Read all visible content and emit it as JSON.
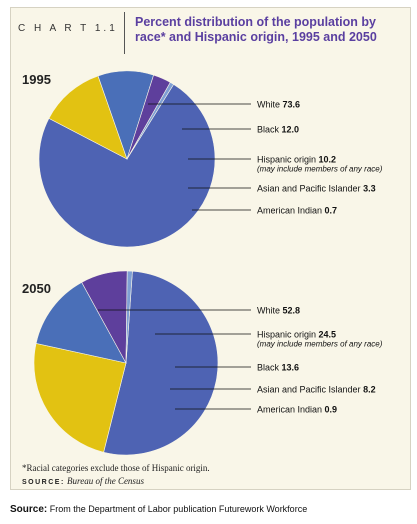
{
  "header": {
    "chart_label": "C H A R T   1.1",
    "title": "Percent distribution of the population by race* and Hispanic origin, 1995 and 2050"
  },
  "colors": {
    "white": "#4e63b3",
    "black": "#e2c212",
    "hispanic": "#4a6fb8",
    "asian": "#5e3f9c",
    "american_indian": "#7f9fd4"
  },
  "chart_data": [
    {
      "type": "pie",
      "title": "1995",
      "slices": [
        {
          "label": "White",
          "value": 73.6,
          "color": "#4e63b3"
        },
        {
          "label": "Black",
          "value": 12.0,
          "color": "#e2c212"
        },
        {
          "label": "Hispanic origin",
          "value": 10.2,
          "note": "(may include members of any race)",
          "color": "#4a6fb8"
        },
        {
          "label": "Asian and Pacific Islander",
          "value": 3.3,
          "color": "#5e3f9c"
        },
        {
          "label": "American Indian",
          "value": 0.7,
          "color": "#7f9fd4"
        }
      ]
    },
    {
      "type": "pie",
      "title": "2050",
      "slices": [
        {
          "label": "White",
          "value": 52.8,
          "color": "#4e63b3"
        },
        {
          "label": "Hispanic origin",
          "value": 24.5,
          "note": "(may include members of any race)",
          "color": "#e2c212"
        },
        {
          "label": "Black",
          "value": 13.6,
          "color": "#4a6fb8"
        },
        {
          "label": "Asian and Pacific Islander",
          "value": 8.2,
          "color": "#5e3f9c"
        },
        {
          "label": "American Indian",
          "value": 0.9,
          "color": "#7f9fd4"
        }
      ]
    }
  ],
  "footnote": "*Racial categories exclude those of Hispanic origin.",
  "source": {
    "label": "SOURCE:",
    "text": "Bureau of the Census"
  },
  "caption": {
    "label": "Source:",
    "text": "From the Department of Labor publication Futurework Workforce"
  }
}
